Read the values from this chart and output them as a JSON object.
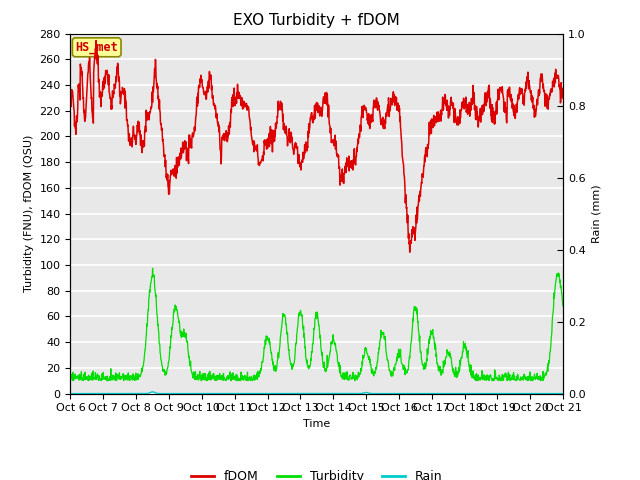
{
  "title": "EXO Turbidity + fDOM",
  "xlabel": "Time",
  "ylabel_left": "Turbidity (FNU), fDOM (QSU)",
  "ylabel_right": "Rain (mm)",
  "ylim_left": [
    0,
    280
  ],
  "ylim_right": [
    0,
    1.0
  ],
  "x_tick_labels": [
    "Oct 6",
    "Oct 7",
    "Oct 8",
    "Oct 9",
    "Oct 10",
    "Oct 11",
    "Oct 12",
    "Oct 13",
    "Oct 14",
    "Oct 15",
    "Oct 16",
    "Oct 17",
    "Oct 18",
    "Oct 19",
    "Oct 20",
    "Oct 21"
  ],
  "annotation_text": "HS_met",
  "annotation_color": "#cc0000",
  "annotation_bg": "#ffff99",
  "annotation_border": "#888800",
  "fdom_color": "#dd0000",
  "turbidity_color": "#00dd00",
  "rain_color": "#00cccc",
  "plot_bg_color": "#e8e8e8",
  "grid_color": "#ffffff",
  "title_fontsize": 11,
  "label_fontsize": 8,
  "tick_fontsize": 8,
  "legend_fontsize": 9,
  "right_tick_values": [
    0.0,
    0.2,
    0.4,
    0.6,
    0.8,
    1.0
  ],
  "right_tick_labels": [
    "0.0",
    "0.2",
    "0.4",
    "0.6",
    "0.8",
    "1.0"
  ]
}
